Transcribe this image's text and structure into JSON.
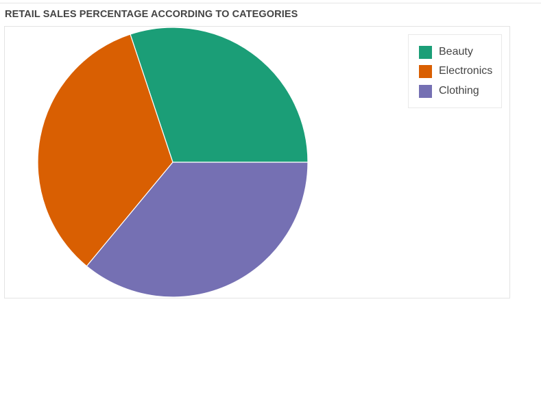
{
  "chart_data": {
    "type": "pie",
    "title": "RETAIL SALES PERCENTAGE ACCORDING TO CATEGORIES",
    "slices": [
      {
        "label": "Beauty",
        "value": 30.1,
        "color": "#1b9e77"
      },
      {
        "label": "Electronics",
        "value": 33.9,
        "color": "#d95f02"
      },
      {
        "label": "Clothing",
        "value": 36.0,
        "color": "#7570b3"
      }
    ],
    "legend": "top-right",
    "start_angle_deg": 0,
    "direction": "counterclockwise-from-3-oclock"
  }
}
